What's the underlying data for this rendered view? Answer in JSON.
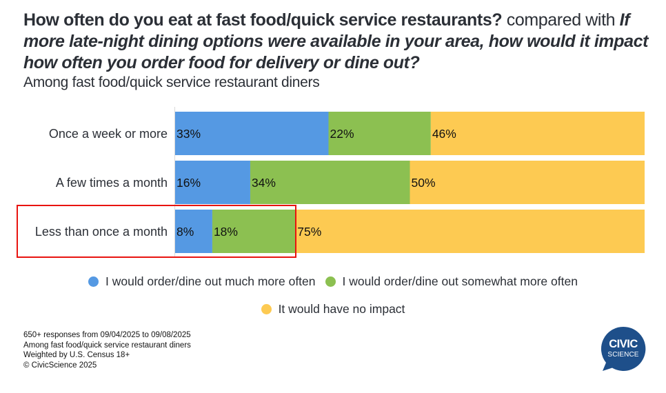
{
  "title": {
    "bold_part": "How often do you eat at fast food/quick service restaurants?",
    "connector": " compared with ",
    "italic_part": "If more late-night dining options were available in your area, how would it impact how often you order food for delivery or dine out?",
    "subtitle": "Among fast food/quick service restaurant diners"
  },
  "colors": {
    "much_more": "#5599e3",
    "somewhat_more": "#8cc051",
    "no_impact": "#fdca52",
    "highlight": "#e8130f",
    "logo": "#1e4f8a"
  },
  "chart_data": {
    "type": "bar",
    "orientation": "horizontal",
    "stacked": true,
    "normalized": true,
    "title": "How often do you eat at fast food/quick service restaurants? compared with If more late-night dining options were available in your area, how would it impact how often you order food for delivery or dine out?",
    "subtitle": "Among fast food/quick service restaurant diners",
    "xlabel": "",
    "ylabel": "",
    "categories": [
      "Once a week or more",
      "A few times a month",
      "Less than once a month"
    ],
    "series": [
      {
        "name": "I would order/dine out much more often",
        "color": "#5599e3",
        "values": [
          33,
          16,
          8
        ]
      },
      {
        "name": "I would order/dine out somewhat more often",
        "color": "#8cc051",
        "values": [
          22,
          34,
          18
        ]
      },
      {
        "name": "It would have no impact",
        "color": "#fdca52",
        "values": [
          46,
          50,
          75
        ]
      }
    ],
    "value_format": "{v}%",
    "xlim": [
      0,
      100
    ],
    "grid": false,
    "legend_position": "bottom",
    "highlighted_category": "Less than once a month"
  },
  "legend": [
    {
      "label": "I would order/dine out much more often",
      "color": "#5599e3"
    },
    {
      "label": "I would order/dine out somewhat more often",
      "color": "#8cc051"
    },
    {
      "label": "It would have no impact",
      "color": "#fdca52"
    }
  ],
  "footnotes": [
    "650+ responses from 09/04/2025 to 09/08/2025",
    "Among fast food/quick service restaurant diners",
    "Weighted by U.S. Census 18+",
    "© CivicScience 2025"
  ],
  "logo": {
    "line1": "CIVIC",
    "line2": "SCIENCE"
  }
}
